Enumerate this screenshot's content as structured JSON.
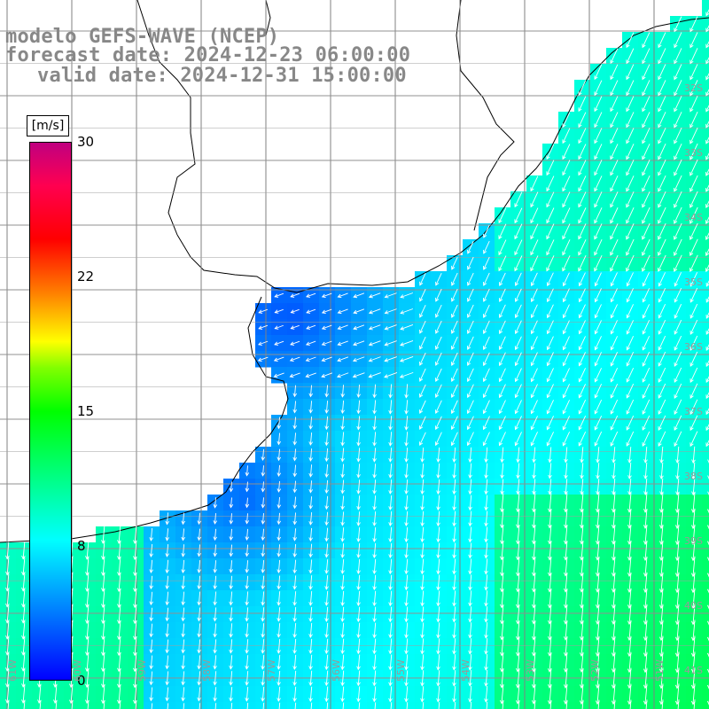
{
  "title": {
    "line1": "modelo GEFS-WAVE (NCEP)",
    "line2": "forecast date: 2024-12-23 06:00:00",
    "line3": "valid date: 2024-12-31 15:00:00"
  },
  "colorbar": {
    "unit": "[m/s]",
    "ticks": [
      "30",
      "22",
      "15",
      "8",
      "0"
    ],
    "tick_values": [
      30,
      22,
      15,
      8,
      0
    ],
    "min": 0,
    "max": 30,
    "colors": [
      "#0000ff",
      "#0080ff",
      "#00ffff",
      "#00ff80",
      "#00ff00",
      "#80ff00",
      "#ffff00",
      "#ff8000",
      "#ff0000",
      "#ff0050",
      "#c00080"
    ]
  },
  "map": {
    "lat_labels": [
      "32S",
      "33S",
      "34S",
      "35S",
      "36S",
      "37S",
      "38S",
      "39S",
      "40S",
      "41S"
    ],
    "lon_labels": [
      "61W",
      "60W",
      "59W",
      "58W",
      "57W",
      "56W",
      "55W",
      "54W",
      "53W",
      "52W",
      "51W"
    ],
    "lon_range": [
      -61.5,
      -50.5
    ],
    "lat_range": [
      -41.5,
      -31.5
    ],
    "grid": true,
    "field": "wind speed and direction",
    "ocean_low_color": "#2060ff",
    "ocean_high_color": "#30ff60",
    "arrow_color": "#ffffff",
    "coast_color": "#000000"
  }
}
